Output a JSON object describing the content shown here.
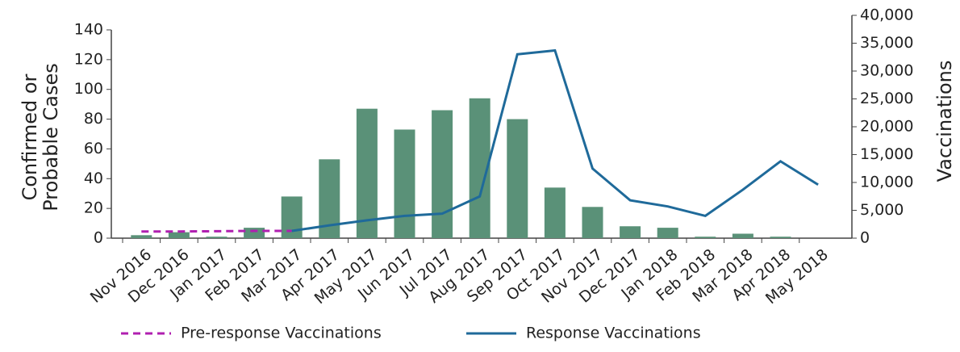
{
  "chart_data": {
    "type": "bar",
    "ylabel": [
      "Confirmed or",
      "Probable Cases"
    ],
    "y2label": "Vaccinations",
    "categories": [
      "Nov 2016",
      "Dec 2016",
      "Jan 2017",
      "Feb 2017",
      "Mar 2017",
      "Apr 2017",
      "May 2017",
      "Jun 2017",
      "Jul 2017",
      "Aug 2017",
      "Sep 2017",
      "Oct 2017",
      "Nov 2017",
      "Dec 2017",
      "Jan 2018",
      "Feb 2018",
      "Mar 2018",
      "Apr 2018",
      "May 2018"
    ],
    "values": [
      2,
      4,
      1,
      7,
      28,
      53,
      87,
      73,
      86,
      94,
      80,
      34,
      21,
      8,
      7,
      1,
      3,
      1,
      0
    ],
    "color": "#5a9178",
    "ylim": [
      0,
      140
    ],
    "yticks": [
      0,
      20,
      40,
      60,
      80,
      100,
      120,
      140
    ],
    "y2lim": [
      0,
      40000
    ],
    "y2ticks": [
      0,
      {
        "value": 5000,
        "label": "5,000"
      },
      {
        "value": 10000,
        "label": "10,000"
      },
      {
        "value": 15000,
        "label": "15,000"
      },
      {
        "value": 20000,
        "label": "20,000"
      },
      {
        "value": 25000,
        "label": "25,000"
      },
      {
        "value": 30000,
        "label": "30,000"
      },
      {
        "value": 35000,
        "label": "35,000"
      },
      {
        "value": 40000,
        "label": "40,000"
      }
    ],
    "series": [
      {
        "name": "Pre-response Vaccinations",
        "color": "#b01fb0",
        "dashed": true,
        "axis": "y2",
        "values": [
          1200,
          1200,
          1250,
          1300,
          1300,
          null,
          null,
          null,
          null,
          null,
          null,
          null,
          null,
          null,
          null,
          null,
          null,
          null,
          null
        ]
      },
      {
        "name": "Response Vaccinations",
        "color": "#1f6a9a",
        "axis": "y2",
        "values": [
          null,
          null,
          null,
          null,
          1300,
          2300,
          3200,
          4000,
          4400,
          7500,
          33000,
          33700,
          12500,
          6800,
          5700,
          4000,
          8700,
          13800,
          9600
        ]
      }
    ]
  }
}
